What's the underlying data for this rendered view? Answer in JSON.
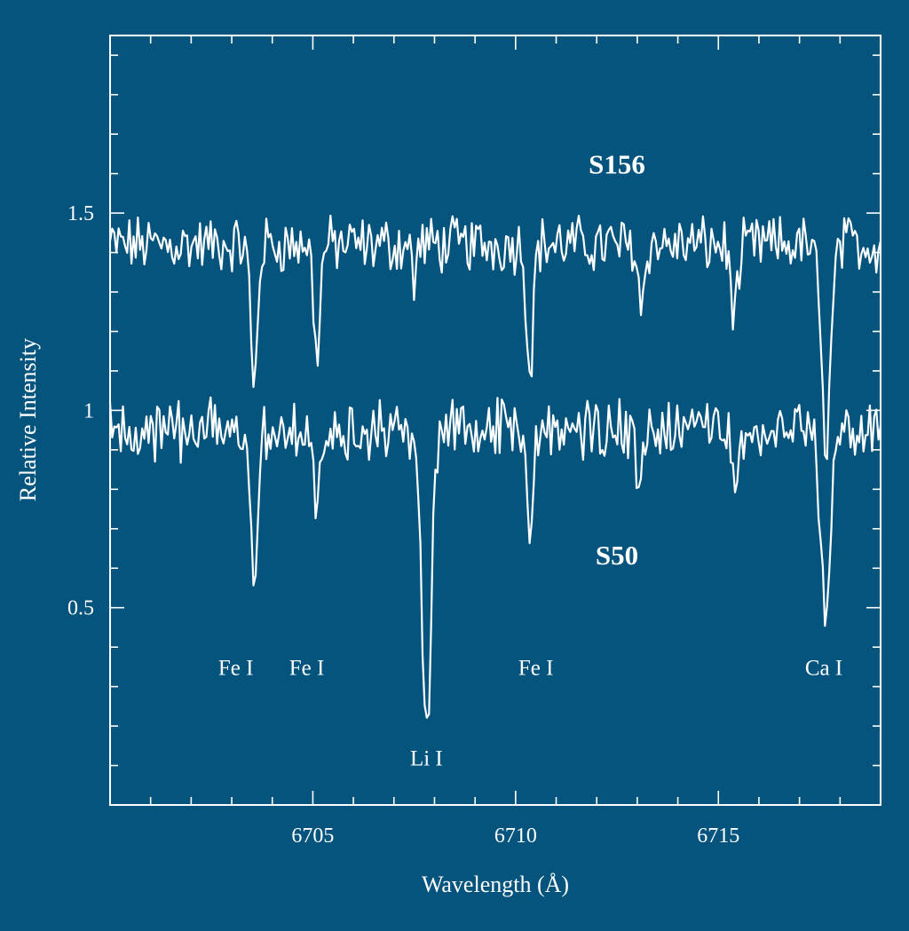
{
  "chart_data": {
    "type": "line",
    "xlabel": "Wavelength (Å)",
    "ylabel": "Relative Intensity",
    "xlim": [
      6700.0,
      6719.0
    ],
    "ylim": [
      0.0,
      1.95
    ],
    "x_ticks": [
      6705,
      6710,
      6715
    ],
    "y_ticks": [
      0.5,
      1,
      1.5
    ],
    "x_tick_labels": [
      "6705",
      "6710",
      "6715"
    ],
    "y_tick_labels": [
      "0.5",
      "1",
      "1.5"
    ],
    "x_minor_step": 1,
    "y_minor_step": 0.1,
    "grid": false,
    "spectrum_range": [
      6700.0,
      6719.0
    ],
    "series": [
      {
        "name": "S156",
        "continuum": 1.42,
        "lines": [
          {
            "center": 6703.55,
            "depth": 0.36,
            "width": 0.08
          },
          {
            "center": 6705.1,
            "depth": 0.27,
            "width": 0.08
          },
          {
            "center": 6707.5,
            "depth": 0.1,
            "width": 0.05
          },
          {
            "center": 6710.35,
            "depth": 0.31,
            "width": 0.08
          },
          {
            "center": 6713.1,
            "depth": 0.16,
            "width": 0.07
          },
          {
            "center": 6715.4,
            "depth": 0.16,
            "width": 0.1
          },
          {
            "center": 6717.65,
            "depth": 0.49,
            "width": 0.12
          }
        ]
      },
      {
        "name": "S50",
        "continuum": 0.95,
        "lines": [
          {
            "center": 6703.55,
            "depth": 0.37,
            "width": 0.08
          },
          {
            "center": 6705.1,
            "depth": 0.23,
            "width": 0.08
          },
          {
            "center": 6707.8,
            "depth": 0.8,
            "width": 0.11
          },
          {
            "center": 6710.35,
            "depth": 0.31,
            "width": 0.08
          },
          {
            "center": 6713.05,
            "depth": 0.17,
            "width": 0.08
          },
          {
            "center": 6715.45,
            "depth": 0.15,
            "width": 0.09
          },
          {
            "center": 6717.65,
            "depth": 0.5,
            "width": 0.12
          }
        ]
      }
    ],
    "annotations": [
      {
        "text": "Fe I",
        "x": 6703.1,
        "y": 0.33
      },
      {
        "text": "Fe I",
        "x": 6704.85,
        "y": 0.33
      },
      {
        "text": "Li I",
        "x": 6707.8,
        "y": 0.1
      },
      {
        "text": "Fe I",
        "x": 6710.5,
        "y": 0.33
      },
      {
        "text": "Ca I",
        "x": 6717.6,
        "y": 0.33
      }
    ],
    "series_labels": [
      {
        "text": "S156",
        "x": 6712.5,
        "y": 1.6
      },
      {
        "text": "S50",
        "x": 6712.5,
        "y": 0.61
      }
    ]
  }
}
